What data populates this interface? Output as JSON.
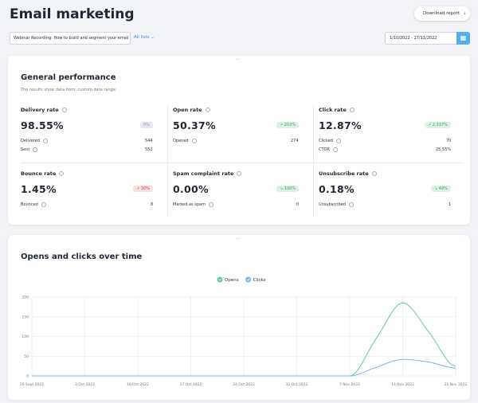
{
  "header": {
    "title": "Email marketing",
    "download_button": "Download report"
  },
  "filters": {
    "campaign": "Webinar Recording: How to build and segment your email",
    "lists": "All lists",
    "date_range": "1/10/2022 - 27/11/2022"
  },
  "performance": {
    "title": "General performance",
    "subtitle": "The results show data from: custom date range.",
    "metrics": [
      {
        "label": "Delivery rate",
        "value": "98.55%",
        "change": "0%",
        "badge_color": "#e6e9ee",
        "badge_text_color": "#8a93a0",
        "details": [
          {
            "label": "Delivered",
            "value": "544"
          },
          {
            "label": "Sent",
            "value": "552"
          }
        ]
      },
      {
        "label": "Open rate",
        "value": "50.37%",
        "change": "↗ 202%",
        "badge_color": "#dcf3e3",
        "badge_text_color": "#3a9a5b",
        "details": [
          {
            "label": "Opened",
            "value": "274"
          }
        ]
      },
      {
        "label": "Click rate",
        "value": "12.87%",
        "change": "↗ 2,337%",
        "badge_color": "#dcf3e3",
        "badge_text_color": "#3a9a5b",
        "details": [
          {
            "label": "Clicked",
            "value": "70"
          },
          {
            "label": "CTOR",
            "value": "25.55%"
          }
        ]
      },
      {
        "label": "Bounce rate",
        "value": "1.45%",
        "change": "↗ 30%",
        "badge_color": "#fbe0e0",
        "badge_text_color": "#d64545",
        "details": [
          {
            "label": "Bounced",
            "value": "8"
          }
        ]
      },
      {
        "label": "Spam complaint rate",
        "value": "0.00%",
        "change": "↘ 100%",
        "badge_color": "#dcf3e3",
        "badge_text_color": "#3a9a5b",
        "details": [
          {
            "label": "Marked as spam",
            "value": "0"
          }
        ]
      },
      {
        "label": "Unsubscribe rate",
        "value": "0.18%",
        "change": "↘ 49%",
        "badge_color": "#dcf3e3",
        "badge_text_color": "#3a9a5b",
        "details": [
          {
            "label": "Unsubscribed",
            "value": "1"
          }
        ]
      }
    ]
  },
  "chart_data": {
    "type": "line",
    "title": "Opens and clicks over time",
    "categories": [
      "26 Sept 2022",
      null,
      "3 Oct 2022",
      null,
      "10 Oct 2022",
      null,
      "17 Oct 2022",
      null,
      "24 Oct 2022",
      null,
      "31 Oct 2022",
      null,
      "7 Nov 2022",
      null,
      "14 Nov 2022",
      null,
      "21 Nov 2022"
    ],
    "series": [
      {
        "name": "Opens",
        "color": "#5cc7b2",
        "values": [
          0,
          0,
          0,
          0,
          0,
          0,
          0,
          0,
          0,
          0,
          0,
          0,
          0,
          95,
          185,
          110,
          25
        ]
      },
      {
        "name": "Clicks",
        "color": "#7ab6e6",
        "values": [
          0,
          0,
          0,
          0,
          0,
          0,
          0,
          0,
          0,
          0,
          0,
          0,
          0,
          22,
          42,
          35,
          20
        ]
      }
    ],
    "ylim": [
      0,
      200
    ],
    "yticks": [
      0,
      50,
      100,
      150,
      200
    ],
    "grid": true
  }
}
